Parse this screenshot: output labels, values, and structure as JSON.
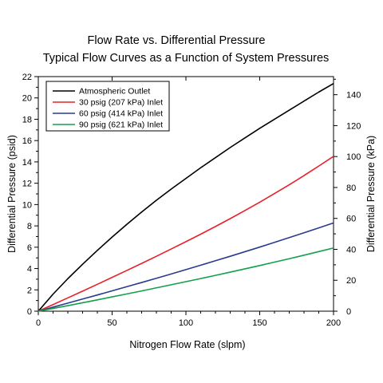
{
  "chart_data": {
    "type": "line",
    "title": "Flow Rate vs. Differential Pressure",
    "subtitle": "Typical Flow Curves as a Function of System Pressures",
    "xlabel": "Nitrogen Flow Rate (slpm)",
    "ylabel": "Differential Pressure (psid)",
    "ylabel_right": "Differential Pressure (kPa)",
    "xlim": [
      0,
      200
    ],
    "ylim": [
      0,
      22
    ],
    "ylim_right": [
      0,
      151.7
    ],
    "x_ticks": [
      0,
      50,
      100,
      150,
      200
    ],
    "y_ticks": [
      0,
      2,
      4,
      6,
      8,
      10,
      12,
      14,
      16,
      18,
      20,
      22
    ],
    "y_ticks_right": [
      0,
      20,
      40,
      60,
      80,
      100,
      120,
      140
    ],
    "grid": false,
    "legend_position": "top-left",
    "series": [
      {
        "name": "Atmospheric Outlet",
        "color": "#000000",
        "x": [
          0,
          10,
          20,
          30,
          40,
          50,
          60,
          70,
          80,
          90,
          100,
          110,
          120,
          130,
          140,
          150,
          160,
          170,
          180,
          190,
          200
        ],
        "y": [
          0,
          1.6,
          3.05,
          4.4,
          5.7,
          6.95,
          8.15,
          9.3,
          10.4,
          11.45,
          12.45,
          13.45,
          14.4,
          15.35,
          16.25,
          17.15,
          18.0,
          18.85,
          19.7,
          20.55,
          21.35
        ]
      },
      {
        "name": "30 psig (207 kPa) Inlet",
        "color": "#e8202a",
        "x": [
          0,
          10,
          20,
          30,
          40,
          50,
          60,
          70,
          80,
          90,
          100,
          110,
          120,
          130,
          140,
          150,
          160,
          170,
          180,
          190,
          200
        ],
        "y": [
          0,
          0.62,
          1.25,
          1.88,
          2.52,
          3.17,
          3.82,
          4.48,
          5.15,
          5.83,
          6.52,
          7.22,
          7.94,
          8.68,
          9.44,
          10.22,
          11.03,
          11.86,
          12.72,
          13.61,
          14.52
        ]
      },
      {
        "name": "60 psig (414 kPa) Inlet",
        "color": "#2b3a8f",
        "x": [
          0,
          10,
          20,
          30,
          40,
          50,
          60,
          70,
          80,
          90,
          100,
          110,
          120,
          130,
          140,
          150,
          160,
          170,
          180,
          190,
          200
        ],
        "y": [
          0,
          0.38,
          0.76,
          1.14,
          1.52,
          1.91,
          2.3,
          2.69,
          3.09,
          3.49,
          3.9,
          4.31,
          4.73,
          5.15,
          5.58,
          6.01,
          6.45,
          6.9,
          7.35,
          7.81,
          8.28
        ]
      },
      {
        "name": "90 psig (621 kPa) Inlet",
        "color": "#12a04a",
        "x": [
          0,
          10,
          20,
          30,
          40,
          50,
          60,
          70,
          80,
          90,
          100,
          110,
          120,
          130,
          140,
          150,
          160,
          170,
          180,
          190,
          200
        ],
        "y": [
          0,
          0.26,
          0.52,
          0.79,
          1.06,
          1.34,
          1.62,
          1.9,
          2.19,
          2.48,
          2.77,
          3.06,
          3.36,
          3.66,
          3.97,
          4.28,
          4.6,
          4.92,
          5.25,
          5.59,
          5.93
        ]
      }
    ]
  }
}
